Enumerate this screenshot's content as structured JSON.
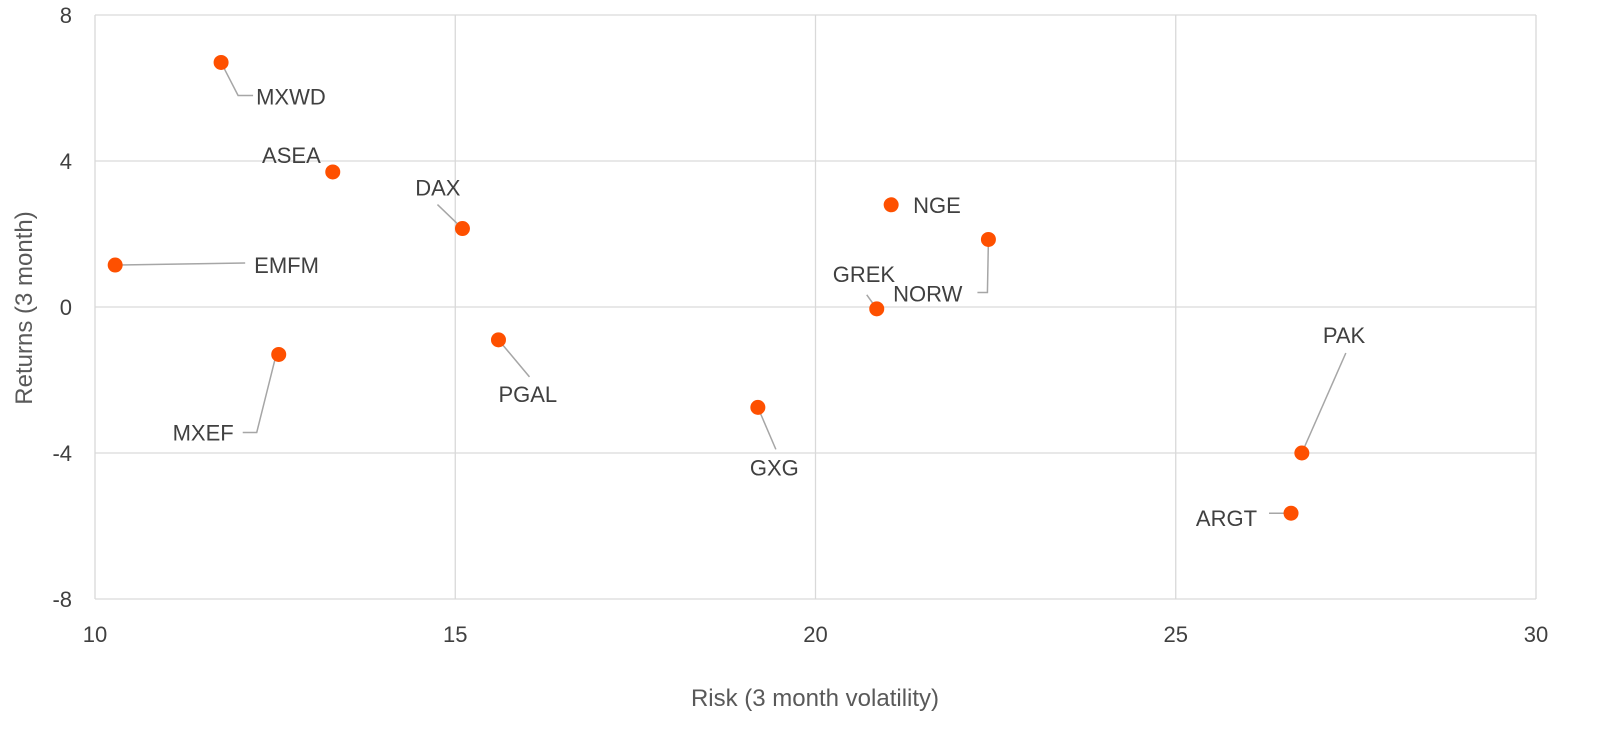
{
  "chart_data": {
    "type": "scatter",
    "xlabel": "Risk (3 month volatility)",
    "ylabel": "Returns (3 month)",
    "xlim": [
      10,
      30
    ],
    "ylim": [
      -8,
      8
    ],
    "x_ticks": [
      "10",
      "15",
      "20",
      "25",
      "30"
    ],
    "y_ticks": [
      "-8",
      "-4",
      "0",
      "4",
      "8"
    ],
    "grid": true,
    "marker_color": "#fe5000",
    "points": [
      {
        "label": "MXWD",
        "x": 11.75,
        "y": 6.7
      },
      {
        "label": "ASEA",
        "x": 13.3,
        "y": 3.7
      },
      {
        "label": "DAX",
        "x": 15.1,
        "y": 2.15
      },
      {
        "label": "EMFM",
        "x": 10.28,
        "y": 1.15
      },
      {
        "label": "MXEF",
        "x": 12.55,
        "y": -1.3
      },
      {
        "label": "PGAL",
        "x": 15.6,
        "y": -0.9
      },
      {
        "label": "GXG",
        "x": 19.2,
        "y": -2.75
      },
      {
        "label": "NGE",
        "x": 21.05,
        "y": 2.8
      },
      {
        "label": "NORW",
        "x": 22.4,
        "y": 1.85
      },
      {
        "label": "GREK",
        "x": 20.85,
        "y": -0.05
      },
      {
        "label": "PAK",
        "x": 26.75,
        "y": -4.0
      },
      {
        "label": "ARGT",
        "x": 26.6,
        "y": -5.65
      }
    ]
  }
}
